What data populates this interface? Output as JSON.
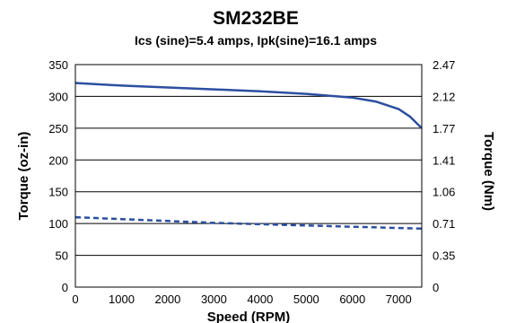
{
  "chart_data": {
    "type": "line",
    "title": "SM232BE",
    "subtitle": "Ics (sine)=5.4 amps, Ipk(sine)=16.1 amps",
    "xlabel": "Speed (RPM)",
    "ylabel": "Torque (oz-in)",
    "y2label": "Torque (Nm)",
    "xlim": [
      0,
      7500
    ],
    "ylim": [
      0,
      350
    ],
    "xticks": [
      0,
      1000,
      2000,
      3000,
      4000,
      5000,
      6000,
      7000
    ],
    "yticks": [
      0,
      50,
      100,
      150,
      200,
      250,
      300,
      350
    ],
    "y2ticks": [
      "0",
      "0.35",
      "0.71",
      "1.06",
      "1.41",
      "1.77",
      "2.12",
      "2.47"
    ],
    "grid": "horizontal",
    "colors": {
      "series": "#2b4fa0",
      "frame": "#000000"
    },
    "series": [
      {
        "style": "solid",
        "x": [
          0,
          1000,
          2000,
          3000,
          4000,
          5000,
          5500,
          6000,
          6500,
          7000,
          7250,
          7500
        ],
        "y": [
          321,
          317,
          314,
          311,
          308,
          304,
          301,
          298,
          292,
          280,
          268,
          250
        ]
      },
      {
        "style": "dashed",
        "x": [
          0,
          1000,
          2000,
          3000,
          4000,
          5000,
          6000,
          7000,
          7500
        ],
        "y": [
          110,
          107,
          104,
          101,
          99,
          97,
          95,
          93,
          92
        ]
      }
    ]
  }
}
